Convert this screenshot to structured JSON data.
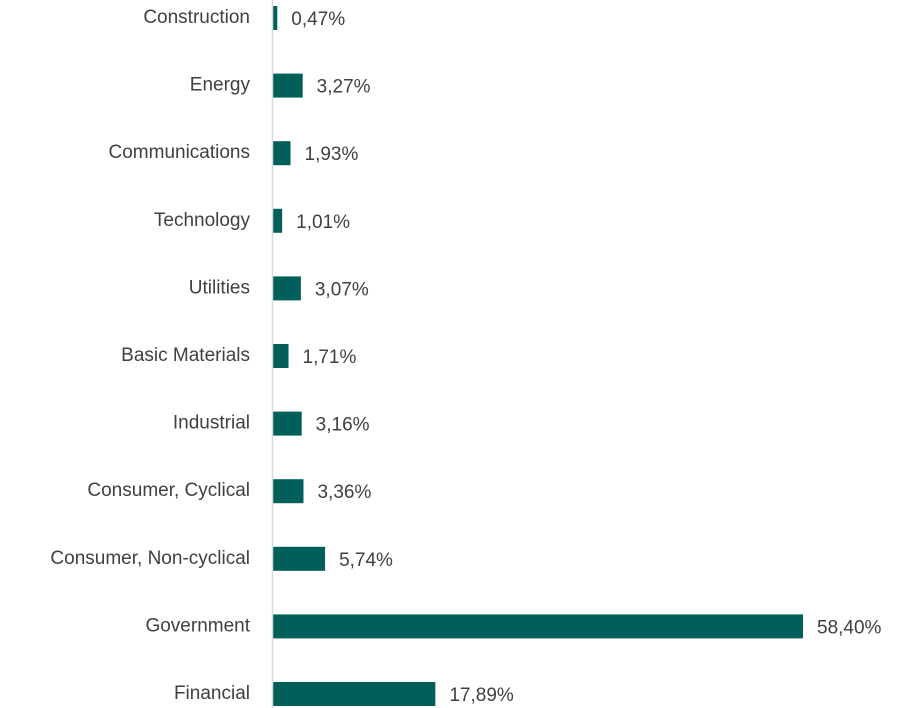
{
  "chart_data": {
    "type": "bar",
    "orientation": "horizontal",
    "categories": [
      "Construction",
      "Energy",
      "Communications",
      "Technology",
      "Utilities",
      "Basic Materials",
      "Industrial",
      "Consumer, Cyclical",
      "Consumer, Non-cyclical",
      "Government",
      "Financial"
    ],
    "values": [
      0.47,
      3.27,
      1.93,
      1.01,
      3.07,
      1.71,
      3.16,
      3.36,
      5.74,
      58.4,
      17.89
    ],
    "value_labels": [
      "0,47%",
      "3,27%",
      "1,93%",
      "1,01%",
      "3,07%",
      "1,71%",
      "3,16%",
      "3,36%",
      "5,74%",
      "58,40%",
      "17,89%"
    ],
    "unit": "%",
    "title": "",
    "xlabel": "",
    "ylabel": "",
    "xlim": [
      0,
      58.4
    ],
    "grid": false,
    "legend": "none",
    "bar_color": "#005F5A",
    "axis_color": "#D9D9D9",
    "text_color": "#404040"
  }
}
